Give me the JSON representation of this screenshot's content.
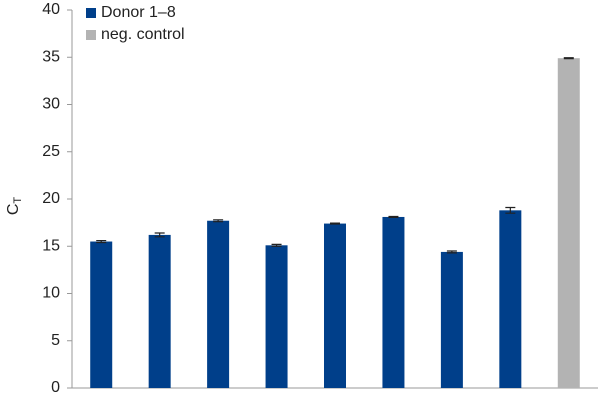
{
  "chart_data": {
    "type": "bar",
    "y_label": {
      "text": "C",
      "subscript": "T"
    },
    "categories": [
      null,
      null,
      null,
      null,
      null,
      null,
      null,
      null,
      null
    ],
    "series": [
      {
        "name": "Donor 1–8",
        "color": "#003f8a",
        "values": [
          15.5,
          16.2,
          17.7,
          15.1,
          17.4,
          18.1,
          14.4,
          18.8,
          null
        ],
        "errors": [
          0.1,
          0.2,
          0.1,
          0.1,
          0.05,
          0.05,
          0.1,
          0.3,
          null
        ]
      },
      {
        "name": "neg. control",
        "color": "#b3b3b3",
        "values": [
          null,
          null,
          null,
          null,
          null,
          null,
          null,
          null,
          34.9
        ],
        "errors": [
          null,
          null,
          null,
          null,
          null,
          null,
          null,
          null,
          0.05
        ]
      }
    ],
    "ylim": [
      0,
      40
    ],
    "yticks": [
      0,
      5,
      10,
      15,
      20,
      25,
      30,
      35,
      40
    ],
    "grid": false,
    "legend": "top-left"
  }
}
